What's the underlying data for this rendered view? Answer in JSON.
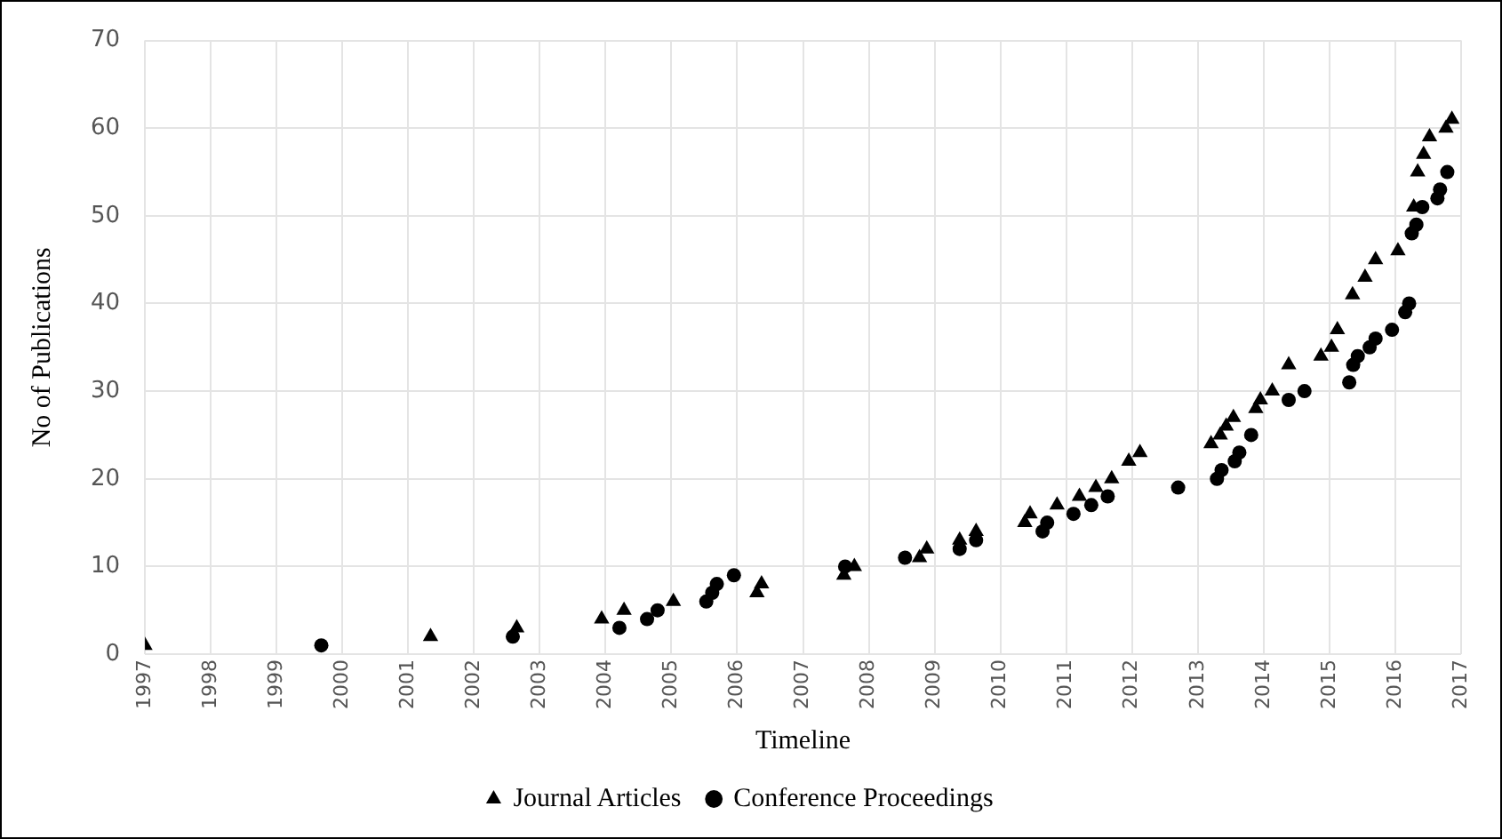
{
  "chart_data": {
    "type": "scatter",
    "xlabel": "Timeline",
    "ylabel": "No of Publications",
    "xlim": [
      1997,
      2017
    ],
    "xticks": [
      1997,
      1998,
      1999,
      2000,
      2001,
      2002,
      2003,
      2004,
      2005,
      2006,
      2007,
      2008,
      2009,
      2010,
      2011,
      2012,
      2013,
      2014,
      2015,
      2016,
      2017
    ],
    "ylim": [
      0,
      70
    ],
    "yticks": [
      0,
      10,
      20,
      30,
      40,
      50,
      60,
      70
    ],
    "grid": true,
    "legend": "bottom",
    "series": [
      {
        "name": "Journal Articles",
        "color": "#000000",
        "marker": "triangle",
        "x": [
          1997.0,
          2001.34,
          2002.65,
          2003.94,
          2004.28,
          2005.03,
          2006.3,
          2006.37,
          2007.62,
          2007.78,
          2008.77,
          2008.88,
          2009.38,
          2009.63,
          2010.37,
          2010.45,
          2010.86,
          2011.2,
          2011.45,
          2011.69,
          2011.95,
          2012.12,
          2013.2,
          2013.34,
          2013.43,
          2013.54,
          2013.88,
          2013.95,
          2014.13,
          2014.38,
          2014.87,
          2015.03,
          2015.12,
          2015.35,
          2015.54,
          2015.7,
          2016.04,
          2016.28,
          2016.34,
          2016.43,
          2016.52,
          2016.77,
          2016.86
        ],
        "values": [
          1,
          2,
          3,
          4,
          5,
          6,
          7,
          8,
          9,
          10,
          11,
          12,
          13,
          14,
          15,
          16,
          17,
          18,
          19,
          20,
          22,
          23,
          24,
          25,
          26,
          27,
          28,
          29,
          30,
          33,
          34,
          35,
          37,
          41,
          43,
          45,
          46,
          51,
          55,
          57,
          59,
          60,
          61
        ]
      },
      {
        "name": "Conference Proceedings",
        "color": "#000000",
        "marker": "circle",
        "x": [
          1999.68,
          2002.59,
          2004.21,
          2004.63,
          2004.79,
          2005.53,
          2005.62,
          2005.69,
          2005.95,
          2007.64,
          2008.55,
          2009.38,
          2009.63,
          2010.64,
          2010.71,
          2011.11,
          2011.38,
          2011.63,
          2012.7,
          2013.29,
          2013.36,
          2013.56,
          2013.63,
          2013.81,
          2014.38,
          2014.62,
          2015.3,
          2015.36,
          2015.43,
          2015.61,
          2015.7,
          2015.95,
          2016.15,
          2016.21,
          2016.25,
          2016.32,
          2016.41,
          2016.64,
          2016.68,
          2016.79
        ],
        "values": [
          1,
          2,
          3,
          4,
          5,
          6,
          7,
          8,
          9,
          10,
          11,
          12,
          13,
          14,
          15,
          16,
          17,
          18,
          19,
          20,
          21,
          22,
          23,
          25,
          29,
          30,
          31,
          33,
          34,
          35,
          36,
          37,
          39,
          40,
          48,
          49,
          51,
          52,
          53,
          55
        ]
      }
    ]
  }
}
